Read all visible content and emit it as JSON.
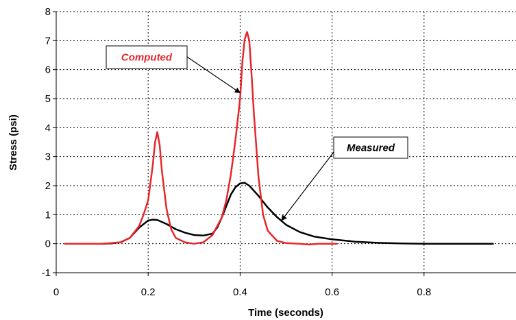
{
  "chart_data": {
    "type": "line",
    "title": "",
    "xlabel": "Time (seconds)",
    "ylabel": "Stress (psi)",
    "xlim": [
      0,
      1.0
    ],
    "ylim": [
      -1,
      8
    ],
    "x_ticks": [
      0,
      0.2,
      0.4,
      0.6,
      0.8
    ],
    "x_tick_labels": [
      "0",
      "0.2",
      "0.4",
      "0.6",
      "0.8"
    ],
    "y_ticks": [
      -1,
      0,
      1,
      2,
      3,
      4,
      5,
      6,
      7,
      8
    ],
    "y_tick_labels": [
      "-1",
      "0",
      "1",
      "2",
      "3",
      "4",
      "5",
      "6",
      "7",
      "8"
    ],
    "grid": true,
    "series": [
      {
        "name": "Computed",
        "color": "#e8262c",
        "x": [
          0.02,
          0.1,
          0.14,
          0.16,
          0.18,
          0.19,
          0.2,
          0.21,
          0.215,
          0.22,
          0.225,
          0.23,
          0.24,
          0.25,
          0.26,
          0.28,
          0.3,
          0.32,
          0.34,
          0.36,
          0.37,
          0.38,
          0.39,
          0.4,
          0.405,
          0.41,
          0.415,
          0.42,
          0.425,
          0.43,
          0.44,
          0.45,
          0.46,
          0.48,
          0.5,
          0.53,
          0.55,
          0.57,
          0.6,
          0.61
        ],
        "y": [
          0,
          0,
          0.05,
          0.2,
          0.6,
          1.0,
          1.5,
          2.7,
          3.5,
          3.85,
          3.4,
          2.5,
          1.2,
          0.5,
          0.2,
          0.05,
          0,
          0.05,
          0.3,
          0.9,
          1.5,
          2.4,
          3.6,
          5.0,
          6.3,
          7.05,
          7.3,
          7.0,
          5.8,
          4.5,
          2.3,
          1.0,
          0.45,
          0.1,
          0.02,
          0,
          -0.03,
          0,
          0,
          0
        ]
      },
      {
        "name": "Measured",
        "color": "#000000",
        "x": [
          0.02,
          0.1,
          0.12,
          0.14,
          0.16,
          0.18,
          0.2,
          0.21,
          0.22,
          0.24,
          0.26,
          0.28,
          0.3,
          0.32,
          0.34,
          0.35,
          0.36,
          0.37,
          0.38,
          0.39,
          0.4,
          0.41,
          0.42,
          0.44,
          0.46,
          0.48,
          0.5,
          0.53,
          0.56,
          0.6,
          0.65,
          0.7,
          0.75,
          0.8,
          0.85,
          0.9,
          0.95
        ],
        "y": [
          0,
          0,
          0.01,
          0.05,
          0.2,
          0.55,
          0.8,
          0.83,
          0.82,
          0.68,
          0.5,
          0.38,
          0.3,
          0.28,
          0.35,
          0.55,
          0.9,
          1.3,
          1.7,
          1.95,
          2.08,
          2.1,
          2.0,
          1.65,
          1.25,
          0.92,
          0.65,
          0.4,
          0.25,
          0.15,
          0.07,
          0.03,
          0.01,
          0,
          0,
          0,
          0
        ]
      }
    ],
    "annotations": [
      {
        "text": "Computed",
        "color": "#e8262c",
        "points_to": [
          0.4,
          5.2
        ]
      },
      {
        "text": "Measured",
        "color": "#000000",
        "points_to": [
          0.49,
          0.8
        ]
      }
    ]
  }
}
